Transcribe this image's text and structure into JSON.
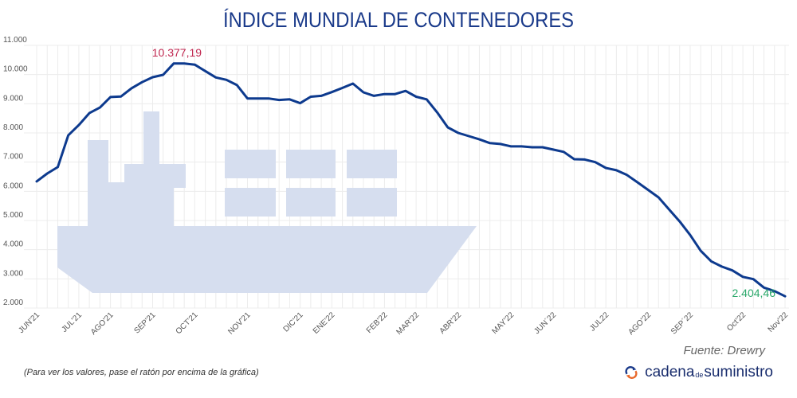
{
  "header": {
    "title": "ÍNDICE MUNDIAL DE CONTENEDORES"
  },
  "footer": {
    "source": "Fuente: Drewry",
    "hint": "(Para ver los valores, pase el ratón por encima de la gráfica)",
    "logo": {
      "part1": "cadena",
      "part2": "de",
      "part3": "suministro",
      "icon": "refresh-arrows-icon"
    }
  },
  "colors": {
    "title": "#1a3a8a",
    "line": "#0d3a8e",
    "max_label": "#c0264f",
    "min_label": "#2aa86a",
    "ship": "#d6deef",
    "grid": "#ececec"
  },
  "chart_data": {
    "type": "line",
    "title": "ÍNDICE MUNDIAL DE CONTENEDORES",
    "xlabel": "",
    "ylabel": "",
    "ylim": [
      2000,
      11000
    ],
    "yticks": [
      2000,
      3000,
      4000,
      5000,
      6000,
      7000,
      8000,
      9000,
      10000,
      11000
    ],
    "ytick_labels": [
      "2.000",
      "3.000",
      "4.000",
      "5.000",
      "6.000",
      "7.000",
      "8.000",
      "9.000",
      "10.000",
      "11.000"
    ],
    "grid": true,
    "month_labels": [
      {
        "label": "JUN'21",
        "index": 0
      },
      {
        "label": "JUL'21",
        "index": 4
      },
      {
        "label": "AGO'21",
        "index": 7
      },
      {
        "label": "SEP'21",
        "index": 11
      },
      {
        "label": "OCT'21",
        "index": 15
      },
      {
        "label": "NOV'21",
        "index": 20
      },
      {
        "label": "DIC'21",
        "index": 25
      },
      {
        "label": "ENE'22",
        "index": 28
      },
      {
        "label": "FEB'22",
        "index": 33
      },
      {
        "label": "MAR'22",
        "index": 36
      },
      {
        "label": "ABR'22",
        "index": 40
      },
      {
        "label": "MAY'22",
        "index": 45
      },
      {
        "label": "JUN´22",
        "index": 49
      },
      {
        "label": "JUL22",
        "index": 54
      },
      {
        "label": "AGO'22",
        "index": 58
      },
      {
        "label": "SEP´22",
        "index": 62
      },
      {
        "label": "Oct'22",
        "index": 67
      },
      {
        "label": "Nov'22",
        "index": 71
      }
    ],
    "series": [
      {
        "name": "Índice Mundial de Contenedores",
        "values": [
          6340,
          6610,
          6830,
          7920,
          8270,
          8680,
          8870,
          9230,
          9250,
          9530,
          9740,
          9910,
          9990,
          10377.19,
          10377.19,
          10340,
          10120,
          9900,
          9820,
          9640,
          9180,
          9180,
          9180,
          9130,
          9150,
          9020,
          9240,
          9270,
          9400,
          9540,
          9690,
          9390,
          9270,
          9330,
          9330,
          9440,
          9240,
          9150,
          8700,
          8190,
          8000,
          7890,
          7780,
          7650,
          7620,
          7540,
          7540,
          7510,
          7510,
          7430,
          7350,
          7100,
          7090,
          7000,
          6800,
          6720,
          6560,
          6310,
          6050,
          5790,
          5380,
          4970,
          4500,
          3960,
          3600,
          3420,
          3290,
          3070,
          2990,
          2700,
          2580,
          2404.46
        ]
      }
    ],
    "annotations": [
      {
        "label": "10.377,19",
        "index": 13,
        "type": "max"
      },
      {
        "label": "2.404,46",
        "index": 71,
        "type": "min"
      }
    ]
  }
}
